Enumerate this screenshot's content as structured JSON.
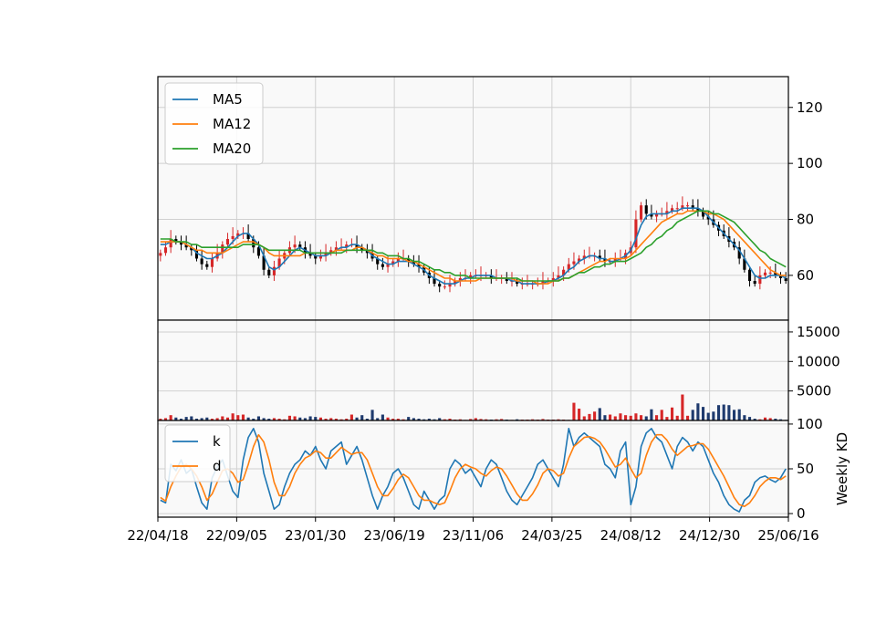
{
  "colors": {
    "ma5": "#1f77b4",
    "ma12": "#ff7f0e",
    "ma20": "#2ca02c",
    "k": "#1f77b4",
    "d": "#ff7f0e",
    "up": "#d62728",
    "down": "#000000",
    "volume_up": "#d62728",
    "volume_down": "#1f3b6e"
  },
  "chart_data": [
    {
      "type": "line",
      "panel": "price",
      "x_ticks": [
        "22/04/18",
        "22/09/05",
        "23/01/30",
        "23/06/19",
        "23/11/06",
        "24/03/25",
        "24/08/12",
        "24/12/30",
        "25/06/16"
      ],
      "y_ticks": [
        "60",
        "80",
        "100",
        "120"
      ],
      "ylim": [
        44,
        131
      ],
      "grid": true,
      "legend_position": "top-left",
      "legend": [
        "MA5",
        "MA12",
        "MA20"
      ],
      "candles_note": "weekly candlesticks",
      "close": [
        68,
        70,
        73,
        72,
        71,
        70,
        69,
        66,
        64,
        63,
        66,
        68,
        71,
        73,
        74,
        75,
        75,
        73,
        70,
        67,
        62,
        60,
        63,
        66,
        68,
        70,
        71,
        70,
        68,
        67,
        66,
        67,
        68,
        69,
        70,
        70,
        71,
        71,
        70,
        69,
        68,
        66,
        64,
        63,
        64,
        65,
        66,
        66,
        65,
        64,
        63,
        61,
        59,
        57,
        56,
        56,
        57,
        58,
        59,
        59,
        60,
        60,
        60,
        60,
        59,
        59,
        59,
        58,
        58,
        57,
        57,
        57,
        57,
        57,
        58,
        58,
        59,
        60,
        62,
        64,
        65,
        66,
        67,
        67,
        67,
        66,
        65,
        65,
        66,
        66,
        68,
        70,
        80,
        85,
        82,
        81,
        82,
        82,
        83,
        84,
        84,
        85,
        85,
        84,
        83,
        81,
        80,
        78,
        76,
        74,
        72,
        70,
        66,
        62,
        58,
        57,
        60,
        61,
        61,
        60,
        59,
        58
      ],
      "series": [
        {
          "name": "MA5",
          "values": [
            71,
            71,
            72,
            72,
            72,
            71,
            70,
            68,
            67,
            66,
            66,
            67,
            68,
            70,
            72,
            74,
            75,
            75,
            73,
            71,
            67,
            63,
            62,
            63,
            65,
            67,
            69,
            70,
            69,
            68,
            67,
            67,
            67,
            68,
            69,
            70,
            70,
            71,
            71,
            70,
            69,
            67,
            66,
            65,
            64,
            64,
            65,
            65,
            65,
            64,
            63,
            62,
            60,
            59,
            58,
            57,
            57,
            57,
            58,
            59,
            59,
            60,
            60,
            60,
            60,
            59,
            59,
            59,
            58,
            58,
            57,
            57,
            57,
            57,
            57,
            58,
            58,
            59,
            60,
            62,
            63,
            65,
            66,
            67,
            67,
            66,
            66,
            65,
            65,
            66,
            67,
            69,
            73,
            78,
            81,
            82,
            82,
            82,
            82,
            83,
            83,
            84,
            84,
            84,
            84,
            83,
            81,
            79,
            77,
            75,
            73,
            71,
            69,
            66,
            63,
            60,
            59,
            59,
            60,
            60,
            60,
            59
          ]
        },
        {
          "name": "MA12",
          "values": [
            72,
            72,
            72,
            72,
            72,
            71,
            70,
            69,
            69,
            68,
            68,
            68,
            68,
            69,
            70,
            71,
            72,
            72,
            72,
            71,
            70,
            68,
            67,
            67,
            67,
            67,
            67,
            67,
            68,
            68,
            68,
            68,
            68,
            68,
            69,
            69,
            69,
            69,
            70,
            70,
            69,
            68,
            67,
            67,
            66,
            66,
            66,
            66,
            65,
            65,
            64,
            63,
            62,
            61,
            60,
            59,
            59,
            58,
            58,
            58,
            58,
            58,
            59,
            59,
            59,
            59,
            59,
            59,
            59,
            58,
            58,
            58,
            58,
            57,
            57,
            57,
            58,
            58,
            59,
            59,
            60,
            61,
            62,
            63,
            64,
            65,
            65,
            66,
            66,
            66,
            66,
            67,
            69,
            71,
            73,
            75,
            77,
            79,
            80,
            81,
            82,
            82,
            83,
            83,
            83,
            83,
            82,
            82,
            81,
            80,
            78,
            76,
            74,
            72,
            70,
            68,
            66,
            64,
            62,
            61,
            60,
            60
          ]
        },
        {
          "name": "MA20",
          "values": [
            73,
            73,
            73,
            72,
            72,
            72,
            71,
            71,
            70,
            70,
            70,
            70,
            70,
            70,
            70,
            70,
            71,
            71,
            71,
            71,
            70,
            69,
            69,
            69,
            69,
            69,
            69,
            69,
            68,
            68,
            68,
            68,
            68,
            68,
            68,
            68,
            69,
            69,
            69,
            69,
            69,
            69,
            68,
            68,
            67,
            67,
            67,
            66,
            66,
            65,
            65,
            64,
            63,
            62,
            62,
            61,
            61,
            60,
            60,
            60,
            59,
            59,
            59,
            59,
            59,
            59,
            59,
            59,
            59,
            59,
            58,
            58,
            58,
            58,
            58,
            58,
            58,
            58,
            59,
            59,
            60,
            61,
            61,
            62,
            63,
            63,
            64,
            64,
            65,
            65,
            65,
            66,
            67,
            68,
            70,
            71,
            73,
            74,
            76,
            77,
            79,
            80,
            81,
            82,
            83,
            83,
            83,
            82,
            82,
            81,
            80,
            79,
            77,
            75,
            73,
            71,
            69,
            68,
            66,
            65,
            64,
            63
          ]
        }
      ]
    },
    {
      "type": "bar",
      "panel": "volume",
      "y_ticks": [
        "5000",
        "10000",
        "15000"
      ],
      "ylim": [
        0,
        17000
      ],
      "grid": true,
      "values": [
        300,
        400,
        900,
        500,
        300,
        600,
        700,
        300,
        400,
        500,
        300,
        400,
        700,
        500,
        1200,
        900,
        1000,
        500,
        300,
        700,
        400,
        300,
        400,
        300,
        200,
        800,
        700,
        500,
        400,
        700,
        600,
        500,
        300,
        400,
        300,
        200,
        300,
        1000,
        500,
        900,
        300,
        1800,
        400,
        1000,
        500,
        300,
        300,
        200,
        600,
        400,
        300,
        200,
        300,
        200,
        400,
        200,
        300,
        150,
        200,
        100,
        250,
        400,
        250,
        200,
        150,
        200,
        250,
        150,
        100,
        200,
        150,
        150,
        200,
        150,
        250,
        150,
        150,
        200,
        150,
        100,
        3000,
        2000,
        700,
        1100,
        1500,
        2100,
        900,
        1000,
        700,
        1200,
        900,
        800,
        1200,
        900,
        700,
        1900,
        900,
        1800,
        600,
        2200,
        800,
        4400,
        800,
        1800,
        2900,
        2300,
        1300,
        1500,
        2600,
        2700,
        2600,
        1800,
        1900,
        900,
        600,
        300,
        200,
        500,
        400,
        300,
        200,
        100
      ]
    },
    {
      "type": "line",
      "panel": "kd",
      "ylabel": "Weekly KD",
      "y_ticks": [
        "0",
        "50",
        "100"
      ],
      "ylim": [
        -4,
        104
      ],
      "grid": true,
      "legend_position": "top-left",
      "legend": [
        "k",
        "d"
      ],
      "series": [
        {
          "name": "k",
          "values": [
            15,
            12,
            55,
            48,
            60,
            45,
            50,
            30,
            12,
            5,
            40,
            52,
            60,
            42,
            25,
            18,
            60,
            85,
            95,
            80,
            45,
            25,
            5,
            10,
            30,
            45,
            55,
            60,
            70,
            65,
            75,
            60,
            50,
            70,
            75,
            80,
            55,
            65,
            75,
            60,
            40,
            20,
            5,
            20,
            30,
            45,
            50,
            40,
            25,
            10,
            5,
            25,
            15,
            5,
            15,
            20,
            50,
            60,
            55,
            45,
            50,
            40,
            30,
            50,
            60,
            55,
            40,
            25,
            15,
            10,
            20,
            30,
            40,
            55,
            60,
            50,
            40,
            30,
            55,
            95,
            75,
            85,
            90,
            85,
            80,
            75,
            55,
            50,
            40,
            70,
            80,
            10,
            30,
            75,
            90,
            95,
            85,
            80,
            65,
            50,
            75,
            85,
            80,
            70,
            80,
            75,
            60,
            45,
            35,
            20,
            10,
            5,
            2,
            15,
            20,
            35,
            40,
            42,
            38,
            35,
            40,
            50
          ]
        },
        {
          "name": "d",
          "values": [
            18,
            14,
            30,
            42,
            52,
            55,
            50,
            42,
            30,
            15,
            22,
            35,
            48,
            50,
            45,
            35,
            38,
            55,
            75,
            88,
            80,
            60,
            35,
            20,
            20,
            30,
            45,
            55,
            62,
            65,
            70,
            68,
            62,
            62,
            68,
            74,
            70,
            66,
            68,
            68,
            60,
            45,
            30,
            20,
            20,
            28,
            38,
            44,
            40,
            30,
            20,
            15,
            15,
            12,
            10,
            12,
            25,
            40,
            50,
            55,
            52,
            50,
            45,
            42,
            48,
            52,
            50,
            42,
            32,
            22,
            15,
            15,
            22,
            32,
            45,
            50,
            48,
            42,
            45,
            62,
            75,
            80,
            85,
            86,
            84,
            80,
            72,
            62,
            52,
            55,
            62,
            50,
            40,
            45,
            65,
            80,
            88,
            88,
            82,
            72,
            65,
            70,
            75,
            76,
            78,
            78,
            72,
            62,
            52,
            42,
            30,
            18,
            10,
            8,
            12,
            20,
            30,
            36,
            40,
            40,
            38,
            42
          ]
        }
      ]
    }
  ]
}
